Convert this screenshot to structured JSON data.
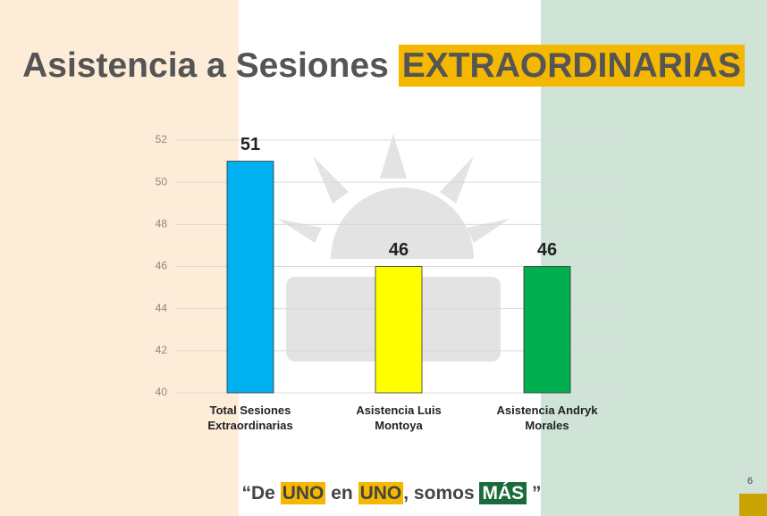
{
  "title": {
    "main": "Asistencia a Sesiones",
    "highlight": "EXTRAORDINARIAS"
  },
  "chart_data": {
    "type": "bar",
    "categories": [
      "Total Sesiones Extraordinarias",
      "Asistencia Luis Montoya",
      "Asistencia Andryk Morales"
    ],
    "values": [
      51,
      46,
      46
    ],
    "colors": [
      "#00b0f0",
      "#ffff00",
      "#00b050"
    ],
    "ylim": [
      40,
      52
    ],
    "yticks": [
      40,
      42,
      44,
      46,
      48,
      50,
      52
    ],
    "grid": true
  },
  "slogan": [
    "“De",
    "UNO",
    "en",
    "UNO",
    ", somos",
    "MÁS",
    "”"
  ],
  "page_number": "6"
}
